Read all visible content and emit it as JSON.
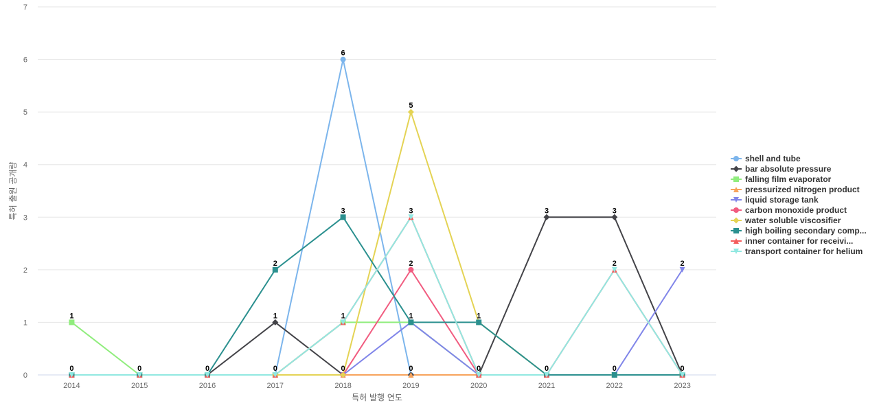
{
  "chart_data": {
    "type": "line",
    "title": "",
    "xlabel": "특허 발행 연도",
    "ylabel": "특허 출원 공개량",
    "ylim": [
      0,
      7
    ],
    "yticks": [
      0,
      1,
      2,
      3,
      4,
      5,
      6,
      7
    ],
    "grid": true,
    "legend_position": "right",
    "categories": [
      "2014",
      "2015",
      "2016",
      "2017",
      "2018",
      "2019",
      "2020",
      "2021",
      "2022",
      "2023"
    ],
    "series": [
      {
        "name": "shell and tube",
        "color": "#7cb5ec",
        "marker": "circle",
        "values": [
          0,
          0,
          0,
          0,
          6,
          0,
          0,
          0,
          0,
          0
        ]
      },
      {
        "name": "bar absolute pressure",
        "color": "#434348",
        "marker": "diamond",
        "values": [
          0,
          0,
          0,
          1,
          0,
          0,
          0,
          3,
          3,
          0
        ]
      },
      {
        "name": "falling film evaporator",
        "color": "#90ed7d",
        "marker": "square",
        "values": [
          1,
          0,
          0,
          0,
          1,
          1,
          0,
          0,
          0,
          0
        ]
      },
      {
        "name": "pressurized nitrogen product",
        "color": "#f7a35c",
        "marker": "triangle",
        "values": [
          0,
          0,
          0,
          0,
          0,
          0,
          0,
          0,
          0,
          0
        ]
      },
      {
        "name": "liquid storage tank",
        "color": "#8085e9",
        "marker": "triangle-down",
        "values": [
          0,
          0,
          0,
          0,
          0,
          1,
          0,
          0,
          0,
          2
        ]
      },
      {
        "name": "carbon monoxide product",
        "color": "#f15c80",
        "marker": "circle",
        "values": [
          0,
          0,
          0,
          0,
          0,
          2,
          0,
          0,
          0,
          0
        ]
      },
      {
        "name": "water soluble viscosifier",
        "color": "#e4d354",
        "marker": "diamond",
        "values": [
          0,
          0,
          0,
          0,
          0,
          5,
          1,
          0,
          0,
          0
        ]
      },
      {
        "name": "high boiling secondary comp...",
        "color": "#2b908f",
        "marker": "square",
        "values": [
          0,
          0,
          0,
          2,
          3,
          1,
          1,
          0,
          0,
          0
        ]
      },
      {
        "name": "inner container for receivi...",
        "color": "#f45b5b",
        "marker": "triangle",
        "values": [
          0,
          0,
          0,
          0,
          1,
          3,
          0,
          0,
          2,
          0
        ]
      },
      {
        "name": "transport container for helium",
        "color": "#91e8e1",
        "marker": "triangle-down",
        "values": [
          0,
          0,
          0,
          0,
          1,
          3,
          0,
          0,
          2,
          0
        ]
      }
    ],
    "data_labels": [
      {
        "category": "2014",
        "values": [
          1,
          0
        ]
      },
      {
        "category": "2015",
        "values": [
          0
        ]
      },
      {
        "category": "2016",
        "values": [
          0
        ]
      },
      {
        "category": "2017",
        "values": [
          2,
          1,
          0
        ]
      },
      {
        "category": "2018",
        "values": [
          6,
          3,
          1,
          0
        ]
      },
      {
        "category": "2019",
        "values": [
          5,
          3,
          2,
          1,
          0
        ]
      },
      {
        "category": "2020",
        "values": [
          1,
          0
        ]
      },
      {
        "category": "2021",
        "values": [
          3,
          0
        ]
      },
      {
        "category": "2022",
        "values": [
          3,
          2,
          0
        ]
      },
      {
        "category": "2023",
        "values": [
          2,
          0
        ]
      }
    ]
  }
}
